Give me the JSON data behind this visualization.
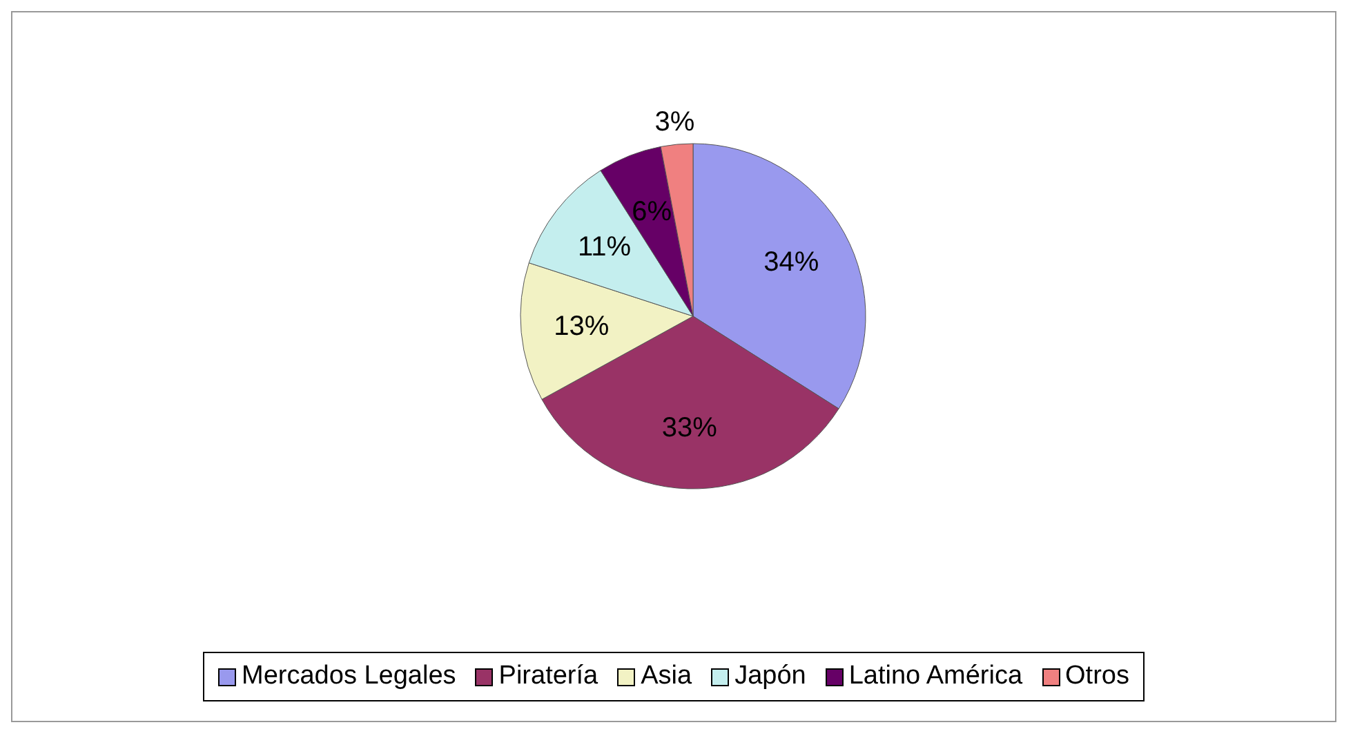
{
  "chart_data": {
    "type": "pie",
    "categories": [
      "Mercados Legales",
      "Piratería",
      "Asia",
      "Japón",
      "Latino América",
      "Otros"
    ],
    "values": [
      34,
      33,
      13,
      11,
      6,
      3
    ],
    "colors": [
      "#9999ee",
      "#993366",
      "#f2f2c4",
      "#c4eeee",
      "#660066",
      "#f08080"
    ],
    "value_labels": [
      "34%",
      "33%",
      "13%",
      "11%",
      "6%",
      "3%"
    ],
    "legend": "bottom"
  }
}
